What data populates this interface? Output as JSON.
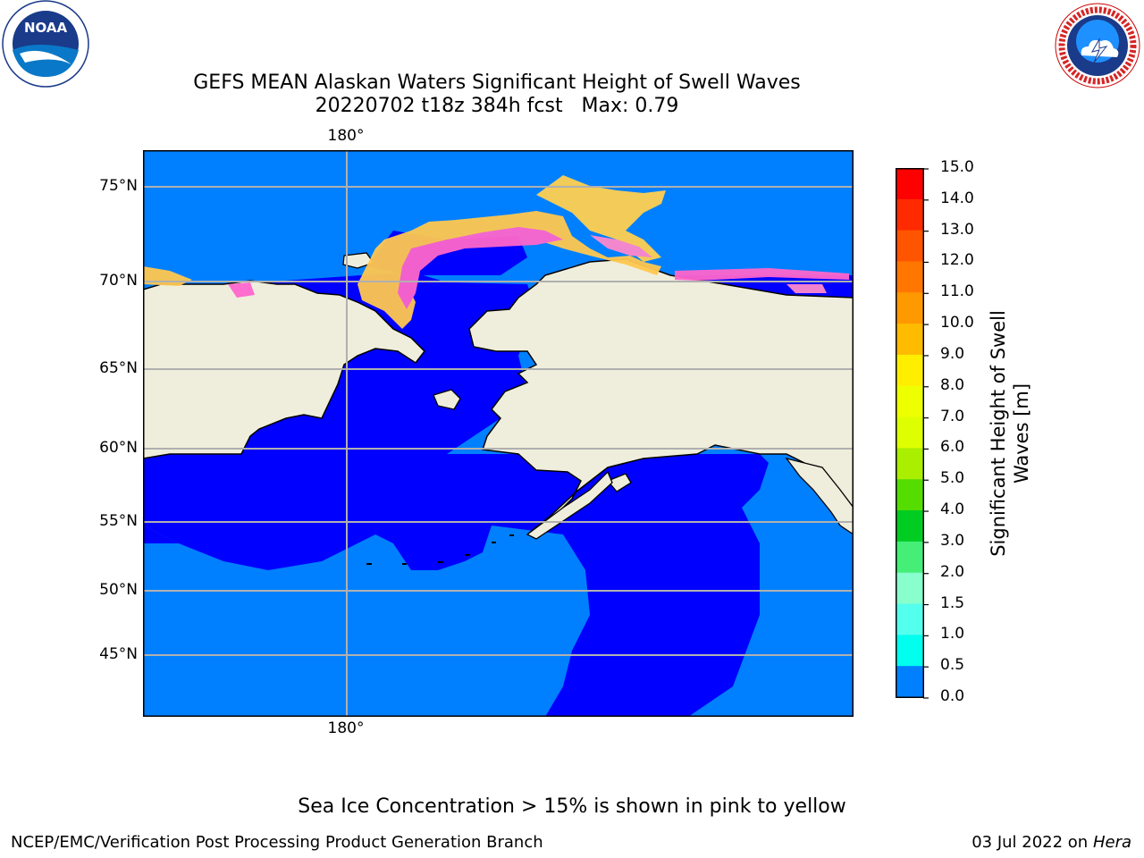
{
  "header": {
    "title_line1": "GEFS MEAN Alaskan Waters Significant Height of Swell Waves",
    "title_line2": "20220702 t18z 384h fcst   Max: 0.79"
  },
  "logos": {
    "left_text": "NOAA",
    "left_ring": "NATIONAL OCEANIC AND ATMOSPHERIC ADMINISTRATION · U.S. DEPARTMENT OF COMMERCE",
    "right_ring": "NATIONAL WEATHER SERVICE"
  },
  "map": {
    "lat_labels": [
      "75°N",
      "70°N",
      "65°N",
      "60°N",
      "55°N",
      "50°N",
      "45°N"
    ],
    "lon_label_top": "180°",
    "lon_label_bottom": "180°",
    "colors": {
      "land": "#efeedc",
      "water_low": "#0000ff",
      "water_mid": "#0080ff",
      "grid": "#b0b0b0"
    }
  },
  "colorbar": {
    "title_line1": "Significant Height of Swell",
    "title_line2": "Waves [m]",
    "ticks": [
      "15.0",
      "14.0",
      "13.0",
      "12.0",
      "11.0",
      "10.0",
      "9.0",
      "8.0",
      "7.0",
      "6.0",
      "5.0",
      "4.0",
      "3.0",
      "2.0",
      "1.5",
      "1.0",
      "0.5",
      "0.0"
    ],
    "colors_top_to_bottom": [
      "#ff0000",
      "#ff2a00",
      "#ff5500",
      "#ff7700",
      "#ff9900",
      "#ffbb00",
      "#ffee00",
      "#eeff00",
      "#ddff00",
      "#aaee00",
      "#55dd00",
      "#00cc22",
      "#44ee77",
      "#88ffcc",
      "#55ffee",
      "#00ffee",
      "#0080ff",
      "#0000ff"
    ]
  },
  "note": "Sea Ice Concentration > 15% is shown in pink to yellow",
  "footer": {
    "left": "NCEP/EMC/Verification Post Processing Product Generation Branch",
    "right_date": "03 Jul 2022 on ",
    "right_host": "Hera"
  }
}
